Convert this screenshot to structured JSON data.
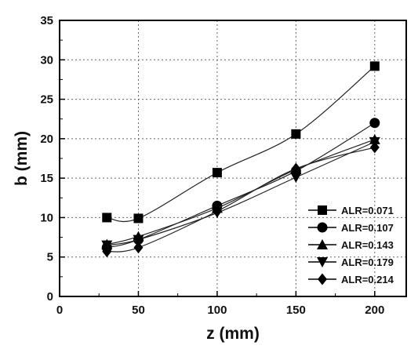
{
  "chart_data": {
    "type": "line",
    "xlabel": "z (mm)",
    "ylabel": "b (mm)",
    "xlim": [
      0,
      220
    ],
    "ylim": [
      0,
      35
    ],
    "x_ticks": [
      0,
      50,
      100,
      150,
      200
    ],
    "y_ticks": [
      0,
      5,
      10,
      15,
      20,
      25,
      30,
      35
    ],
    "grid": "dotted",
    "legend_position": "bottom-right",
    "x": [
      30,
      50,
      100,
      150,
      200
    ],
    "series": [
      {
        "name": "ALR=0.071",
        "marker": "square",
        "values": [
          10.0,
          9.9,
          15.7,
          20.6,
          29.2
        ]
      },
      {
        "name": "ALR=0.107",
        "marker": "circle",
        "values": [
          6.2,
          7.2,
          11.5,
          15.9,
          22.0
        ]
      },
      {
        "name": "ALR=0.143",
        "marker": "triangle-up",
        "values": [
          6.6,
          7.6,
          11.2,
          16.1,
          19.9
        ]
      },
      {
        "name": "ALR=0.179",
        "marker": "triangle-down",
        "values": [
          6.5,
          7.2,
          10.6,
          15.1,
          19.6
        ]
      },
      {
        "name": "ALR=0.214",
        "marker": "diamond",
        "values": [
          5.7,
          6.2,
          10.8,
          16.2,
          18.9
        ]
      }
    ]
  }
}
